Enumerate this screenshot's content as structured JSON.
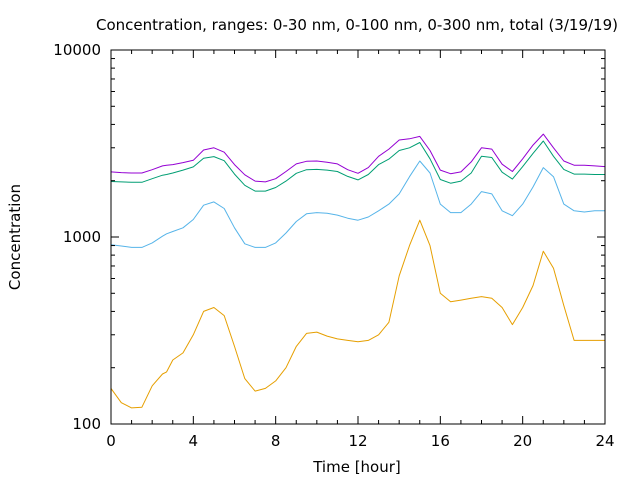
{
  "chart_data": {
    "type": "line",
    "title": "Concentration, ranges: 0-30 nm, 0-100 nm, 0-300 nm, total (3/19/19)",
    "xlabel": "Time [hour]",
    "ylabel": "Concentration",
    "xlim": [
      0,
      24
    ],
    "ylim": [
      100,
      10000
    ],
    "yscale": "log",
    "grid": false,
    "xticks": [
      0,
      4,
      8,
      12,
      16,
      20,
      24
    ],
    "xtick_labels": [
      "0",
      "4",
      "8",
      "12",
      "16",
      "20",
      "24"
    ],
    "yticks": [
      100,
      1000,
      10000
    ],
    "ytick_labels": [
      "100",
      "1000",
      "10000"
    ],
    "x": [
      0,
      0.5,
      1,
      1.5,
      2,
      2.5,
      2.7,
      3,
      3.5,
      4,
      4.5,
      5,
      5.5,
      6,
      6.5,
      7,
      7.5,
      8,
      8.5,
      9,
      9.5,
      10,
      10.5,
      11,
      11.5,
      12,
      12.5,
      13,
      13.5,
      14,
      14.5,
      15,
      15.5,
      16,
      16.5,
      17,
      17.5,
      18,
      18.5,
      19,
      19.5,
      20,
      20.5,
      21,
      21.5,
      22,
      22.5,
      23,
      23.5,
      24
    ],
    "series": [
      {
        "color": "#e69f00",
        "values": [
          155,
          130,
          122,
          123,
          160,
          185,
          190,
          220,
          240,
          300,
          400,
          420,
          380,
          260,
          175,
          150,
          155,
          170,
          200,
          260,
          305,
          310,
          295,
          285,
          280,
          275,
          280,
          300,
          350,
          620,
          900,
          1230,
          900,
          500,
          450,
          460,
          470,
          480,
          470,
          420,
          340,
          420,
          550,
          840,
          680,
          430,
          280,
          280,
          280,
          280
        ]
      },
      {
        "color": "#56b4e9",
        "values": [
          910,
          895,
          880,
          880,
          930,
          1010,
          1040,
          1070,
          1120,
          1240,
          1480,
          1540,
          1420,
          1120,
          920,
          880,
          880,
          930,
          1050,
          1210,
          1330,
          1350,
          1340,
          1310,
          1260,
          1230,
          1280,
          1380,
          1500,
          1700,
          2100,
          2550,
          2200,
          1500,
          1350,
          1350,
          1500,
          1750,
          1700,
          1380,
          1300,
          1500,
          1850,
          2350,
          2100,
          1500,
          1380,
          1360,
          1380,
          1380
        ]
      },
      {
        "color": "#009e73",
        "values": [
          1980,
          1970,
          1960,
          1960,
          2050,
          2140,
          2160,
          2200,
          2280,
          2370,
          2640,
          2690,
          2560,
          2170,
          1890,
          1760,
          1760,
          1840,
          1990,
          2190,
          2290,
          2300,
          2280,
          2240,
          2110,
          2020,
          2160,
          2440,
          2610,
          2900,
          3000,
          3200,
          2620,
          2030,
          1940,
          1990,
          2200,
          2700,
          2660,
          2220,
          2040,
          2380,
          2800,
          3260,
          2700,
          2300,
          2170,
          2170,
          2160,
          2160
        ]
      },
      {
        "color": "#9400d3",
        "values": [
          2230,
          2210,
          2200,
          2200,
          2290,
          2400,
          2420,
          2440,
          2500,
          2570,
          2920,
          3000,
          2840,
          2440,
          2150,
          1990,
          1970,
          2050,
          2240,
          2460,
          2540,
          2550,
          2510,
          2460,
          2290,
          2190,
          2350,
          2700,
          2950,
          3300,
          3350,
          3450,
          2900,
          2280,
          2180,
          2230,
          2520,
          3000,
          2950,
          2450,
          2240,
          2620,
          3100,
          3550,
          3000,
          2550,
          2420,
          2420,
          2400,
          2380
        ]
      }
    ]
  }
}
